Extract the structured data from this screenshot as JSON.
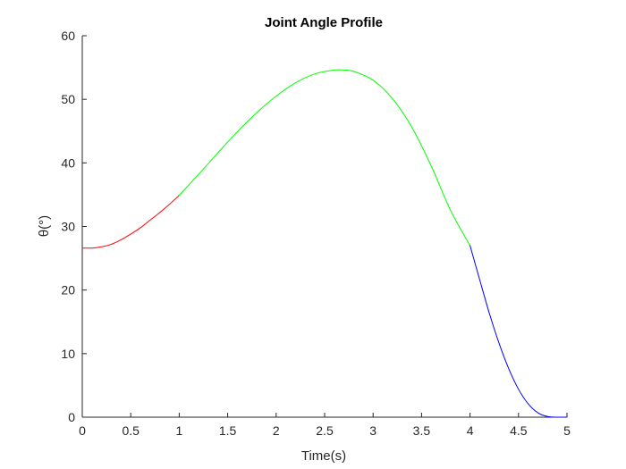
{
  "chart_data": {
    "type": "line",
    "title": "Joint Angle Profile",
    "xlabel": "Time(s)",
    "ylabel": "θ(°)",
    "xlim": [
      0,
      5
    ],
    "ylim": [
      0,
      60
    ],
    "xticks": [
      0,
      0.5,
      1,
      1.5,
      2,
      2.5,
      3,
      3.5,
      4,
      4.5,
      5
    ],
    "xtick_labels": [
      "0",
      "0.5",
      "1",
      "1.5",
      "2",
      "2.5",
      "3",
      "3.5",
      "4",
      "4.5",
      "5"
    ],
    "yticks": [
      0,
      10,
      20,
      30,
      40,
      50,
      60
    ],
    "ytick_labels": [
      "0",
      "10",
      "20",
      "30",
      "40",
      "50",
      "60"
    ],
    "grid": false,
    "series": [
      {
        "color": "#ff0000",
        "x": [
          0,
          0.1,
          0.2,
          0.3,
          0.4,
          0.5,
          0.6,
          0.7,
          0.8,
          0.9,
          1.0
        ],
        "y": [
          26.6,
          26.6,
          26.8,
          27.2,
          27.9,
          28.8,
          29.8,
          31.0,
          32.2,
          33.5,
          34.9
        ]
      },
      {
        "color": "#00ff00",
        "x": [
          1.0,
          1.2,
          1.4,
          1.6,
          1.8,
          2.0,
          2.2,
          2.4,
          2.6,
          2.7,
          2.8,
          3.0,
          3.2,
          3.4,
          3.6,
          3.8,
          4.0
        ],
        "y": [
          34.9,
          38.2,
          41.6,
          44.9,
          47.9,
          50.5,
          52.6,
          54.0,
          54.6,
          54.6,
          54.4,
          53.0,
          50.1,
          45.6,
          39.5,
          32.5,
          27.0
        ],
        "smooth": true
      },
      {
        "color": "#0000ff",
        "x": [
          4.0,
          4.1,
          4.2,
          4.3,
          4.4,
          4.5,
          4.6,
          4.7,
          4.8,
          4.9,
          5.0
        ],
        "y": [
          27.0,
          21.6,
          16.3,
          11.6,
          7.6,
          4.4,
          2.1,
          0.7,
          0.1,
          0.0,
          0.0
        ],
        "smooth": true
      }
    ]
  }
}
